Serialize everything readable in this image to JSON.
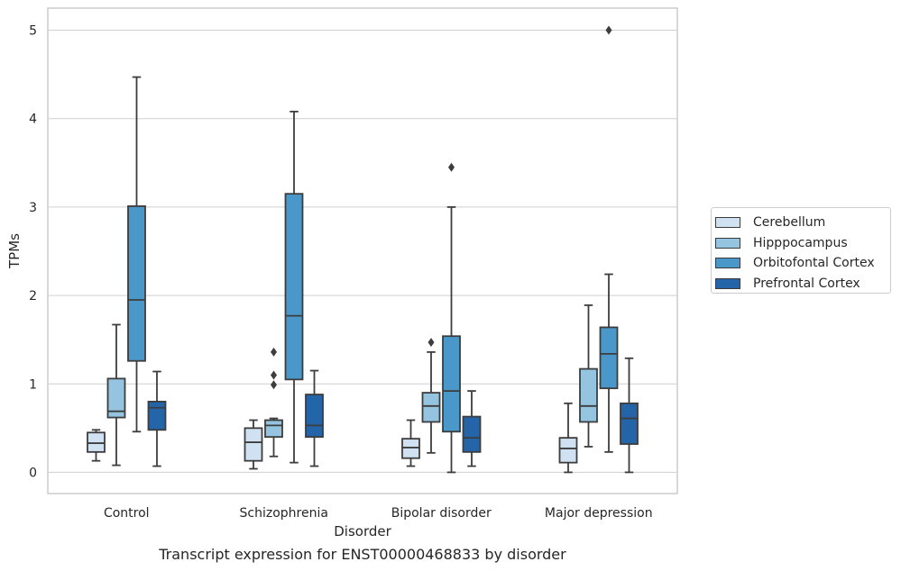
{
  "chart_data": {
    "type": "box",
    "xlabel": "Disorder",
    "ylabel": "TPMs",
    "ylim": [
      -0.24,
      5.25
    ],
    "yticks": [
      0,
      1,
      2,
      3,
      4,
      5
    ],
    "categories": [
      "Control",
      "Schizophrenia",
      "Bipolar disorder",
      "Major depression"
    ],
    "grid": true,
    "legend_position": "right",
    "series": [
      {
        "name": "Cerebellum",
        "color": "#d0e1f2",
        "boxes": [
          {
            "whislo": 0.13,
            "q1": 0.23,
            "med": 0.33,
            "q3": 0.45,
            "whishi": 0.48,
            "fliers": []
          },
          {
            "whislo": 0.04,
            "q1": 0.13,
            "med": 0.34,
            "q3": 0.5,
            "whishi": 0.59,
            "fliers": []
          },
          {
            "whislo": 0.07,
            "q1": 0.16,
            "med": 0.28,
            "q3": 0.38,
            "whishi": 0.59,
            "fliers": []
          },
          {
            "whislo": 0.0,
            "q1": 0.11,
            "med": 0.27,
            "q3": 0.39,
            "whishi": 0.78,
            "fliers": []
          }
        ]
      },
      {
        "name": "Hipppocampus",
        "color": "#94c4df",
        "boxes": [
          {
            "whislo": 0.08,
            "q1": 0.62,
            "med": 0.69,
            "q3": 1.06,
            "whishi": 1.67,
            "fliers": []
          },
          {
            "whislo": 0.18,
            "q1": 0.4,
            "med": 0.53,
            "q3": 0.59,
            "whishi": 0.61,
            "fliers": [
              0.99,
              1.1,
              1.36
            ]
          },
          {
            "whislo": 0.22,
            "q1": 0.57,
            "med": 0.75,
            "q3": 0.9,
            "whishi": 1.36,
            "fliers": [
              1.47
            ]
          },
          {
            "whislo": 0.29,
            "q1": 0.57,
            "med": 0.75,
            "q3": 1.17,
            "whishi": 1.89,
            "fliers": []
          }
        ]
      },
      {
        "name": "Orbitofontal Cortex",
        "color": "#4a98c9",
        "boxes": [
          {
            "whislo": 0.46,
            "q1": 1.26,
            "med": 1.95,
            "q3": 3.01,
            "whishi": 4.47,
            "fliers": []
          },
          {
            "whislo": 0.11,
            "q1": 1.05,
            "med": 1.77,
            "q3": 3.15,
            "whishi": 4.08,
            "fliers": []
          },
          {
            "whislo": 0.0,
            "q1": 0.46,
            "med": 0.92,
            "q3": 1.54,
            "whishi": 3.0,
            "fliers": [
              3.45
            ]
          },
          {
            "whislo": 0.23,
            "q1": 0.95,
            "med": 1.34,
            "q3": 1.64,
            "whishi": 2.24,
            "fliers": [
              5.0
            ]
          }
        ]
      },
      {
        "name": "Prefrontal Cortex",
        "color": "#2464a8",
        "boxes": [
          {
            "whislo": 0.07,
            "q1": 0.48,
            "med": 0.73,
            "q3": 0.8,
            "whishi": 1.14,
            "fliers": []
          },
          {
            "whislo": 0.07,
            "q1": 0.4,
            "med": 0.53,
            "q3": 0.88,
            "whishi": 1.15,
            "fliers": []
          },
          {
            "whislo": 0.07,
            "q1": 0.23,
            "med": 0.39,
            "q3": 0.63,
            "whishi": 0.92,
            "fliers": []
          },
          {
            "whislo": 0.0,
            "q1": 0.32,
            "med": 0.61,
            "q3": 0.78,
            "whishi": 1.29,
            "fliers": []
          }
        ]
      }
    ]
  },
  "caption": "Transcript expression for ENST00000468833 by disorder"
}
